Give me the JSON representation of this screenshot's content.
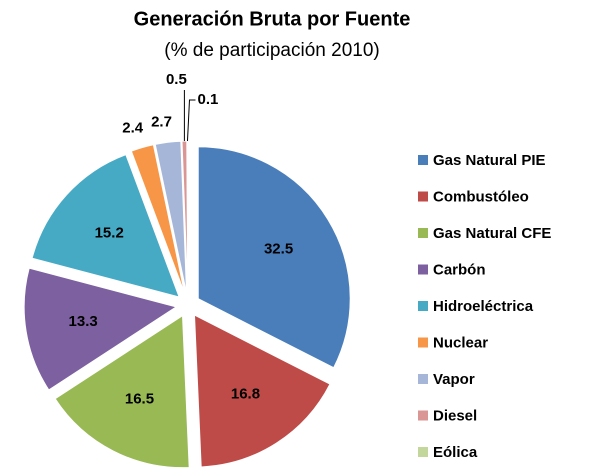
{
  "chart_data": {
    "type": "pie",
    "title": "Generación Bruta por Fuente",
    "subtitle": "(% de participación 2010)",
    "categories": [
      "Gas Natural PIE",
      "Combustóleo",
      "Gas Natural CFE",
      "Carbón",
      "Hidroeléctrica",
      "Nuclear",
      "Vapor",
      "Diesel",
      "Eólica"
    ],
    "values": [
      32.5,
      16.8,
      16.5,
      13.3,
      15.2,
      2.4,
      2.7,
      0.5,
      0.1
    ],
    "colors": [
      "#4a7ebb",
      "#be4b48",
      "#98b954",
      "#7d60a0",
      "#46aac5",
      "#f79646",
      "#a5b6d9",
      "#d99694",
      "#c3d69b"
    ],
    "legend": "right"
  }
}
